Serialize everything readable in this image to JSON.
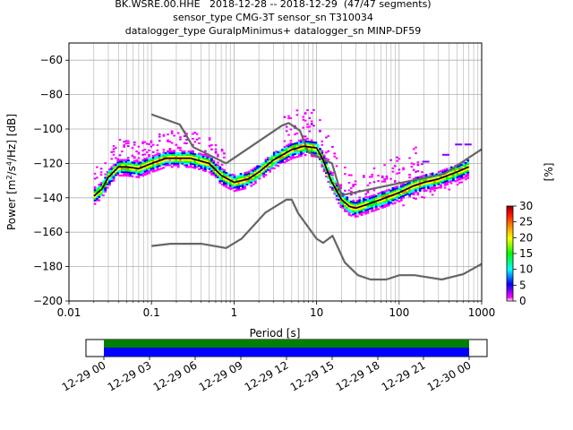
{
  "title_lines": [
    "BK.WSRE.00.HHE   2018-12-28 -- 2018-12-29  (47/47 segments)",
    "sensor_type CMG-3T sensor_sn T310034",
    "datalogger_type GuralpMinimus+ datalogger_sn MINP-DF59"
  ],
  "chart_data": {
    "type": "heatmap",
    "title": "BK.WSRE.00.HHE   2018-12-28 -- 2018-12-29  (47/47 segments)",
    "xlabel": "Period [s]",
    "ylabel": "Power [m²/s⁴/Hz] [dB]",
    "xscale": "log",
    "xlim": [
      0.01,
      1000
    ],
    "ylim": [
      -200,
      -50
    ],
    "grid": true,
    "x_ticks": [
      0.01,
      0.1,
      1,
      10,
      100,
      1000
    ],
    "x_tick_labels": [
      "0.01",
      "0.1",
      "1",
      "10",
      "100",
      "1000"
    ],
    "y_ticks": [
      -200,
      -180,
      -160,
      -140,
      -120,
      -100,
      -80,
      -60
    ],
    "y_tick_labels": [
      "−200",
      "−180",
      "−160",
      "−140",
      "−120",
      "−100",
      "−80",
      "−60"
    ],
    "colorbar": {
      "label": "[%]",
      "range": [
        0,
        30
      ],
      "ticks": [
        0,
        5,
        10,
        15,
        20,
        25,
        30
      ],
      "colors": [
        "#ffffff",
        "#ff00ff",
        "#0000ff",
        "#00ffff",
        "#00ff00",
        "#ffff00",
        "#ff8000",
        "#ff0000",
        "#800000"
      ]
    },
    "series": [
      {
        "role": "mode (black)",
        "color": "#000000",
        "x": [
          0.02,
          0.025,
          0.03,
          0.04,
          0.05,
          0.07,
          0.1,
          0.15,
          0.2,
          0.3,
          0.5,
          0.7,
          1,
          1.5,
          2,
          3,
          5,
          7,
          10,
          12,
          15,
          20,
          25,
          30,
          40,
          60,
          100,
          150,
          200,
          300,
          500,
          700
        ],
        "y": [
          -139,
          -135,
          -128,
          -122,
          -122,
          -123,
          -120,
          -117,
          -117,
          -117,
          -120,
          -127,
          -131,
          -129,
          -125,
          -118,
          -112,
          -110,
          -111,
          -118,
          -130,
          -141,
          -145,
          -146,
          -144,
          -141,
          -137,
          -133,
          -131,
          -129,
          -125,
          -122
        ]
      },
      {
        "role": "high noise model",
        "color": "#666666",
        "x": [
          0.1,
          0.22,
          0.32,
          0.8,
          3.8,
          4.6,
          6.3,
          7.9,
          15.4,
          20,
          354.8,
          10000
        ],
        "y": [
          -91.5,
          -97.4,
          -110.5,
          -120.0,
          -98.0,
          -96.5,
          -101.0,
          -113.5,
          -120.0,
          -138.5,
          -126.0,
          -80.1
        ]
      },
      {
        "role": "low noise model",
        "color": "#666666",
        "x": [
          0.1,
          0.17,
          0.4,
          0.8,
          1.24,
          2.4,
          4.3,
          5.0,
          6.0,
          10.0,
          12.0,
          15.6,
          21.9,
          31.6,
          45.0,
          70.0,
          101.0,
          154.0,
          328.0,
          600.0,
          10000
        ],
        "y": [
          -168.0,
          -166.7,
          -166.7,
          -169.2,
          -163.7,
          -148.6,
          -141.1,
          -141.1,
          -149.0,
          -163.8,
          -166.2,
          -162.1,
          -177.5,
          -185.0,
          -187.5,
          -187.5,
          -185.0,
          -185.0,
          -187.5,
          -184.4,
          -151.5
        ]
      }
    ],
    "timeline": {
      "tick_labels": [
        "12-29 00",
        "12-29 03",
        "12-29 06",
        "12-29 09",
        "12-29 12",
        "12-29 15",
        "12-29 18",
        "12-29 21",
        "12-30 00"
      ],
      "coverage_color": "#008000",
      "segment_color": "#0000ff"
    }
  }
}
